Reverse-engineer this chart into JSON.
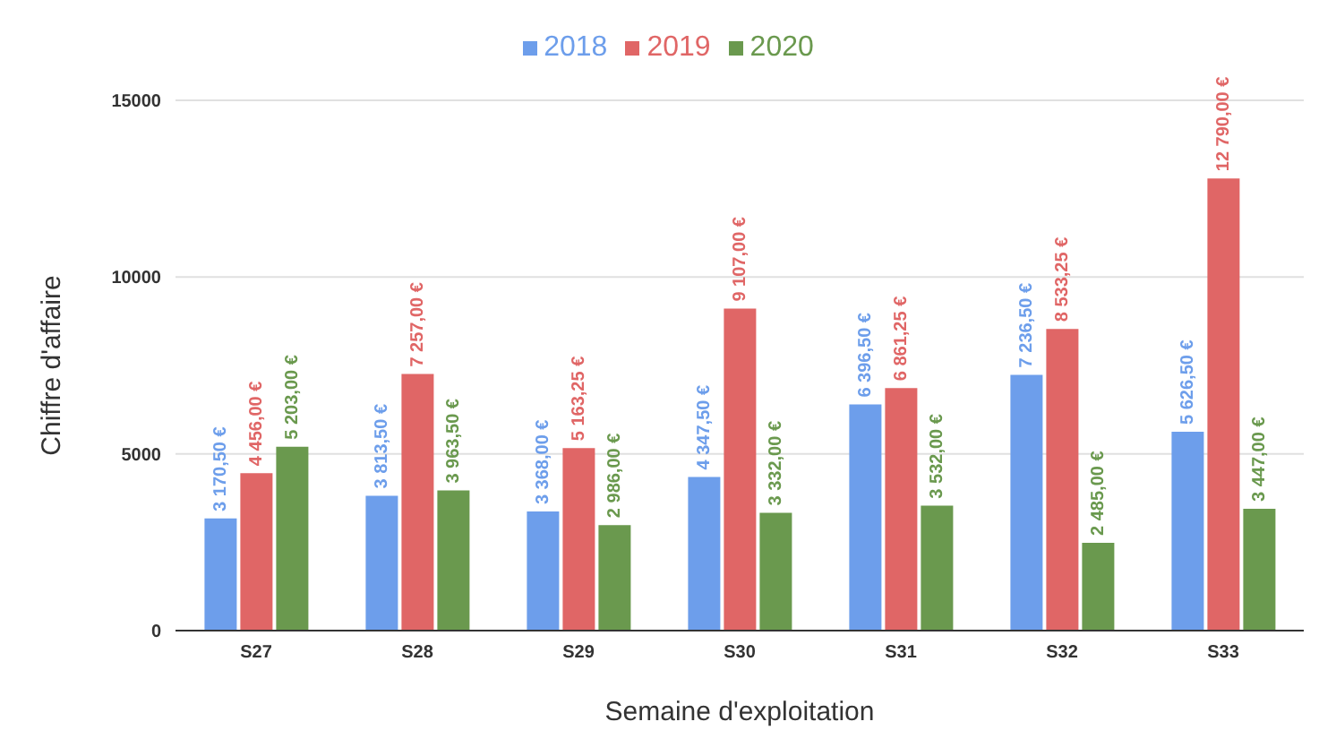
{
  "chart_data": {
    "type": "bar",
    "xlabel": "Semaine d'exploitation",
    "ylabel": "Chiffre d'affaire",
    "categories": [
      "S27",
      "S28",
      "S29",
      "S30",
      "S31",
      "S32",
      "S33"
    ],
    "series": [
      {
        "name": "2018",
        "color": "#6d9eeb",
        "values": [
          3170.5,
          3813.5,
          3368,
          4347.5,
          6396.5,
          7236.5,
          5626.5
        ],
        "value_labels": [
          "3 170,50 €",
          "3 813,50 €",
          "3 368,00 €",
          "4 347,50 €",
          "6 396,50 €",
          "7 236,50 €",
          "5 626,50 €"
        ]
      },
      {
        "name": "2019",
        "color": "#e06666",
        "values": [
          4456,
          7257,
          5163.25,
          9107,
          6861.25,
          8533.25,
          12790
        ],
        "value_labels": [
          "4 456,00 €",
          "7 257,00 €",
          "5 163,25 €",
          "9 107,00 €",
          "6 861,25 €",
          "8 533,25 €",
          "12 790,00 €"
        ]
      },
      {
        "name": "2020",
        "color": "#6a994e",
        "values": [
          5203,
          3963.5,
          2986,
          3332,
          3532,
          2485,
          3447
        ],
        "value_labels": [
          "5 203,00 €",
          "3 963,50 €",
          "2 986,00 €",
          "3 332,00 €",
          "3 532,00 €",
          "2 485,00 €",
          "3 447,00 €"
        ]
      }
    ],
    "ylim": [
      0,
      15000
    ],
    "yticks": [
      0,
      5000,
      10000,
      15000
    ],
    "grid": "y",
    "legend": "top"
  }
}
